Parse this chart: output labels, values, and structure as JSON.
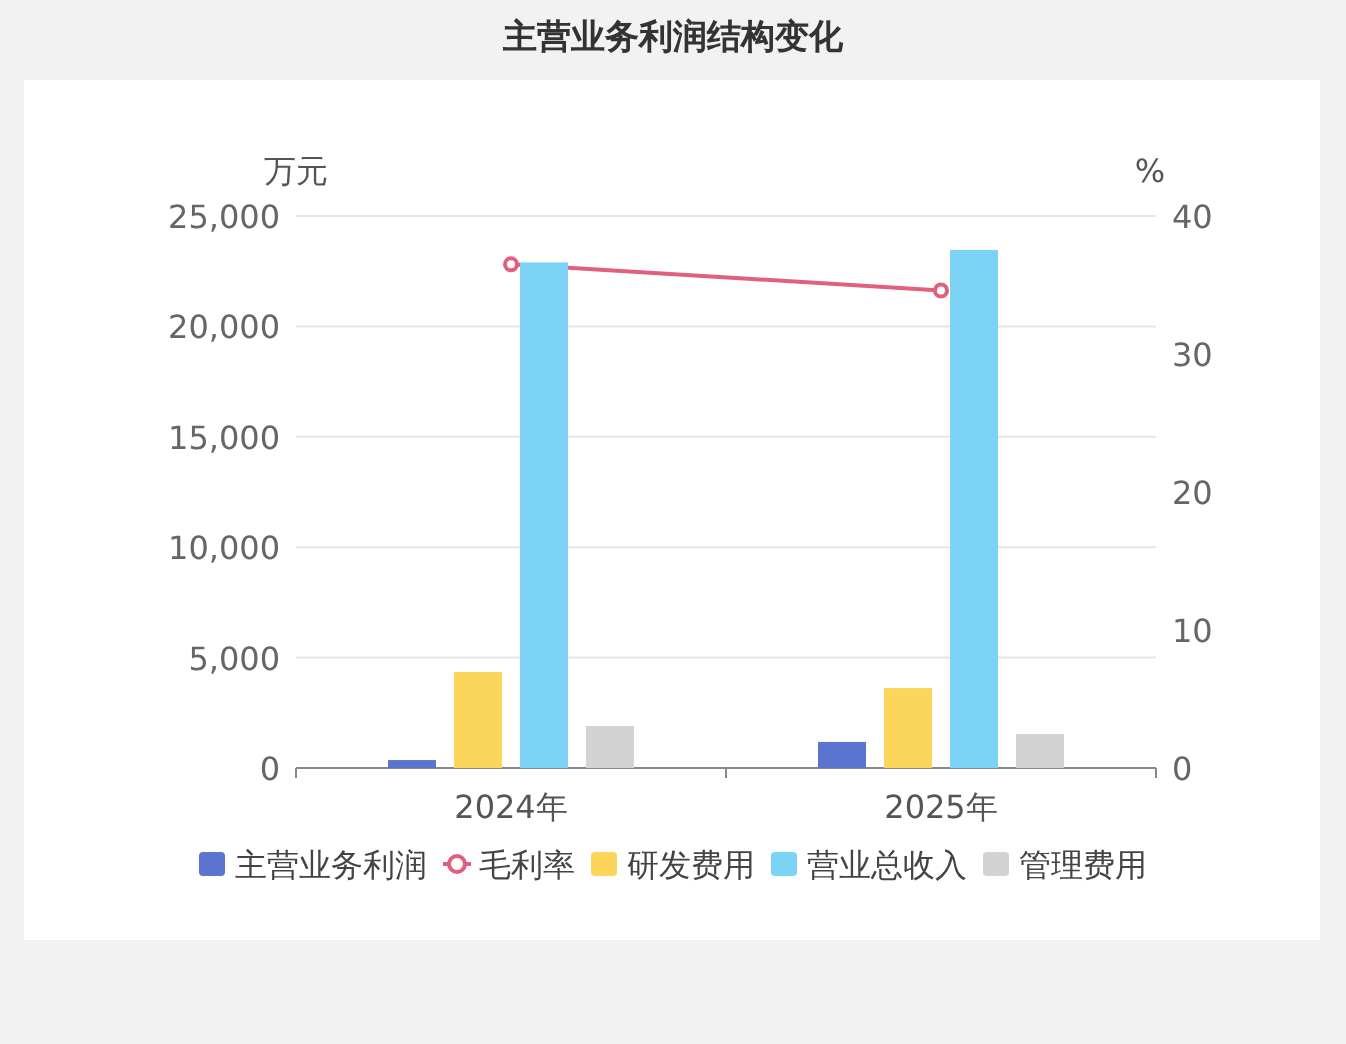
{
  "chart_data": {
    "type": "bar",
    "title": "主营业务利润结构变化",
    "ylabel": "万元",
    "y2label": "%",
    "categories": [
      "2024年",
      "2025年"
    ],
    "series": [
      {
        "name": "主营业务利润",
        "color": "#5b74d0",
        "values": [
          360,
          1180
        ]
      },
      {
        "name": "毛利率",
        "type": "line",
        "axis": "y2",
        "color": "#e0607e",
        "values": [
          36.5,
          34.6
        ]
      },
      {
        "name": "研发费用",
        "color": "#fcd65a",
        "values": [
          4350,
          3620
        ]
      },
      {
        "name": "营业总收入",
        "color": "#7dd3f5",
        "values": [
          22900,
          23460
        ]
      },
      {
        "name": "管理费用",
        "color": "#d3d3d3",
        "values": [
          1900,
          1540
        ]
      }
    ],
    "ylim": [
      0,
      25000
    ],
    "yticks": [
      0,
      {
        "value": 5000,
        "label": "5,000"
      },
      {
        "value": 10000,
        "label": "10,000"
      },
      {
        "value": 15000,
        "label": "15,000"
      },
      {
        "value": 20000,
        "label": "20,000"
      },
      {
        "value": 25000,
        "label": "25,000"
      }
    ],
    "y2lim": [
      0,
      40
    ],
    "y2ticks": [
      0,
      10,
      20,
      30,
      40
    ],
    "grid": "y",
    "legend": "bottom",
    "marker": "circle"
  }
}
